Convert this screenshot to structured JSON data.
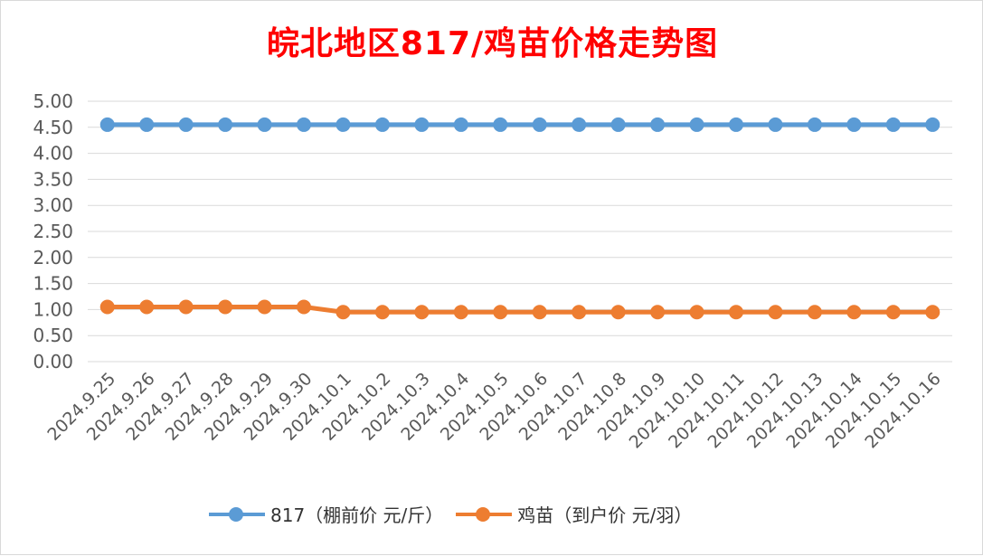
{
  "chart_data": {
    "type": "line",
    "title": "皖北地区817/鸡苗价格走势图",
    "categories": [
      "2024.9.25",
      "2024.9.26",
      "2024.9.27",
      "2024.9.28",
      "2024.9.29",
      "2024.9.30",
      "2024.10.1",
      "2024.10.2",
      "2024.10.3",
      "2024.10.4",
      "2024.10.5",
      "2024.10.6",
      "2024.10.7",
      "2024.10.8",
      "2024.10.9",
      "2024.10.10",
      "2024.10.11",
      "2024.10.12",
      "2024.10.13",
      "2024.10.14",
      "2024.10.15",
      "2024.10.16"
    ],
    "series": [
      {
        "name": "817（棚前价 元/斤）",
        "color": "#5b9bd5",
        "values": [
          4.55,
          4.55,
          4.55,
          4.55,
          4.55,
          4.55,
          4.55,
          4.55,
          4.55,
          4.55,
          4.55,
          4.55,
          4.55,
          4.55,
          4.55,
          4.55,
          4.55,
          4.55,
          4.55,
          4.55,
          4.55,
          4.55
        ]
      },
      {
        "name": "鸡苗（到户价 元/羽）",
        "color": "#ed7d31",
        "values": [
          1.05,
          1.05,
          1.05,
          1.05,
          1.05,
          1.05,
          0.95,
          0.95,
          0.95,
          0.95,
          0.95,
          0.95,
          0.95,
          0.95,
          0.95,
          0.95,
          0.95,
          0.95,
          0.95,
          0.95,
          0.95,
          0.95
        ]
      }
    ],
    "ylim": [
      0,
      5
    ],
    "yticks": [
      "0.00",
      "0.50",
      "1.00",
      "1.50",
      "2.00",
      "2.50",
      "3.00",
      "3.50",
      "4.00",
      "4.50",
      "5.00"
    ],
    "grid": true,
    "legend_position": "bottom",
    "title_color": "#ff0000"
  }
}
